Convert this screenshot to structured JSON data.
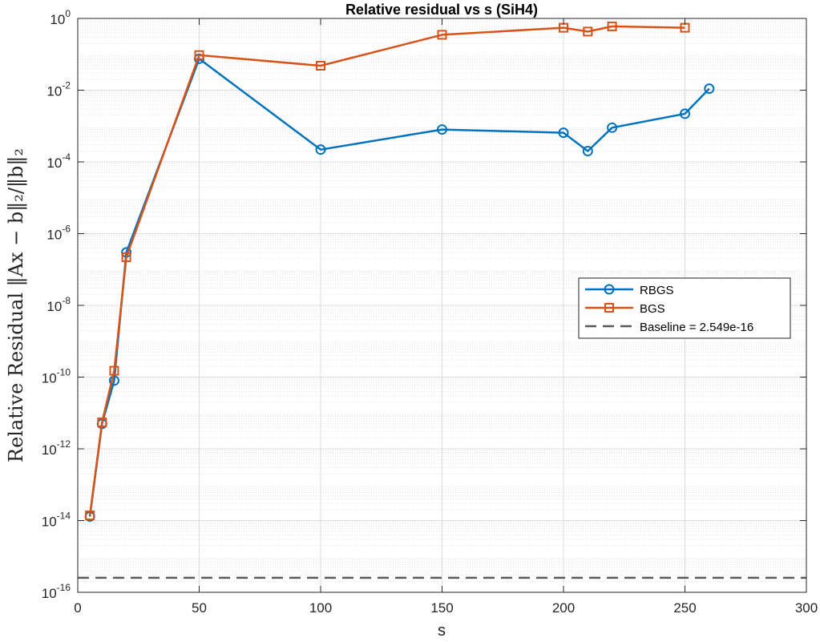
{
  "chart_data": {
    "type": "line",
    "title": "Relative residual vs s (SiH4)",
    "xlabel": "s",
    "ylabel": "Relative Residual ‖Ax − b‖₂/‖b‖₂",
    "xlim": [
      0,
      300
    ],
    "ylim": [
      1e-16,
      1
    ],
    "y_scale": "log",
    "grid": true,
    "minor_grid": true,
    "legend_position": "right-middle",
    "x_ticks": [
      0,
      50,
      100,
      150,
      200,
      250,
      300
    ],
    "y_ticks": [
      -16,
      -14,
      -12,
      -10,
      -8,
      -6,
      -4,
      -2,
      0
    ],
    "series": [
      {
        "name": "RBGS",
        "color": "#0072BD",
        "marker": "circle",
        "x": [
          5,
          10,
          15,
          20,
          50,
          100,
          150,
          200,
          210,
          220,
          250,
          260
        ],
        "y": [
          1.3e-14,
          5e-12,
          8e-11,
          3e-07,
          0.075,
          0.00022,
          0.0008,
          0.00065,
          0.0002,
          0.0009,
          0.0022,
          0.011
        ]
      },
      {
        "name": "BGS",
        "color": "#D95319",
        "marker": "square",
        "x": [
          5,
          10,
          15,
          20,
          50,
          100,
          150,
          200,
          210,
          220,
          250
        ],
        "y": [
          1.4e-14,
          5.5e-12,
          1.5e-10,
          2.2e-07,
          0.095,
          0.048,
          0.35,
          0.55,
          0.43,
          0.6,
          0.55
        ]
      }
    ],
    "baseline": {
      "name": "Baseline = 2.549e-16",
      "value": 2.549e-16,
      "color": "#595959",
      "style": "dashed"
    }
  }
}
